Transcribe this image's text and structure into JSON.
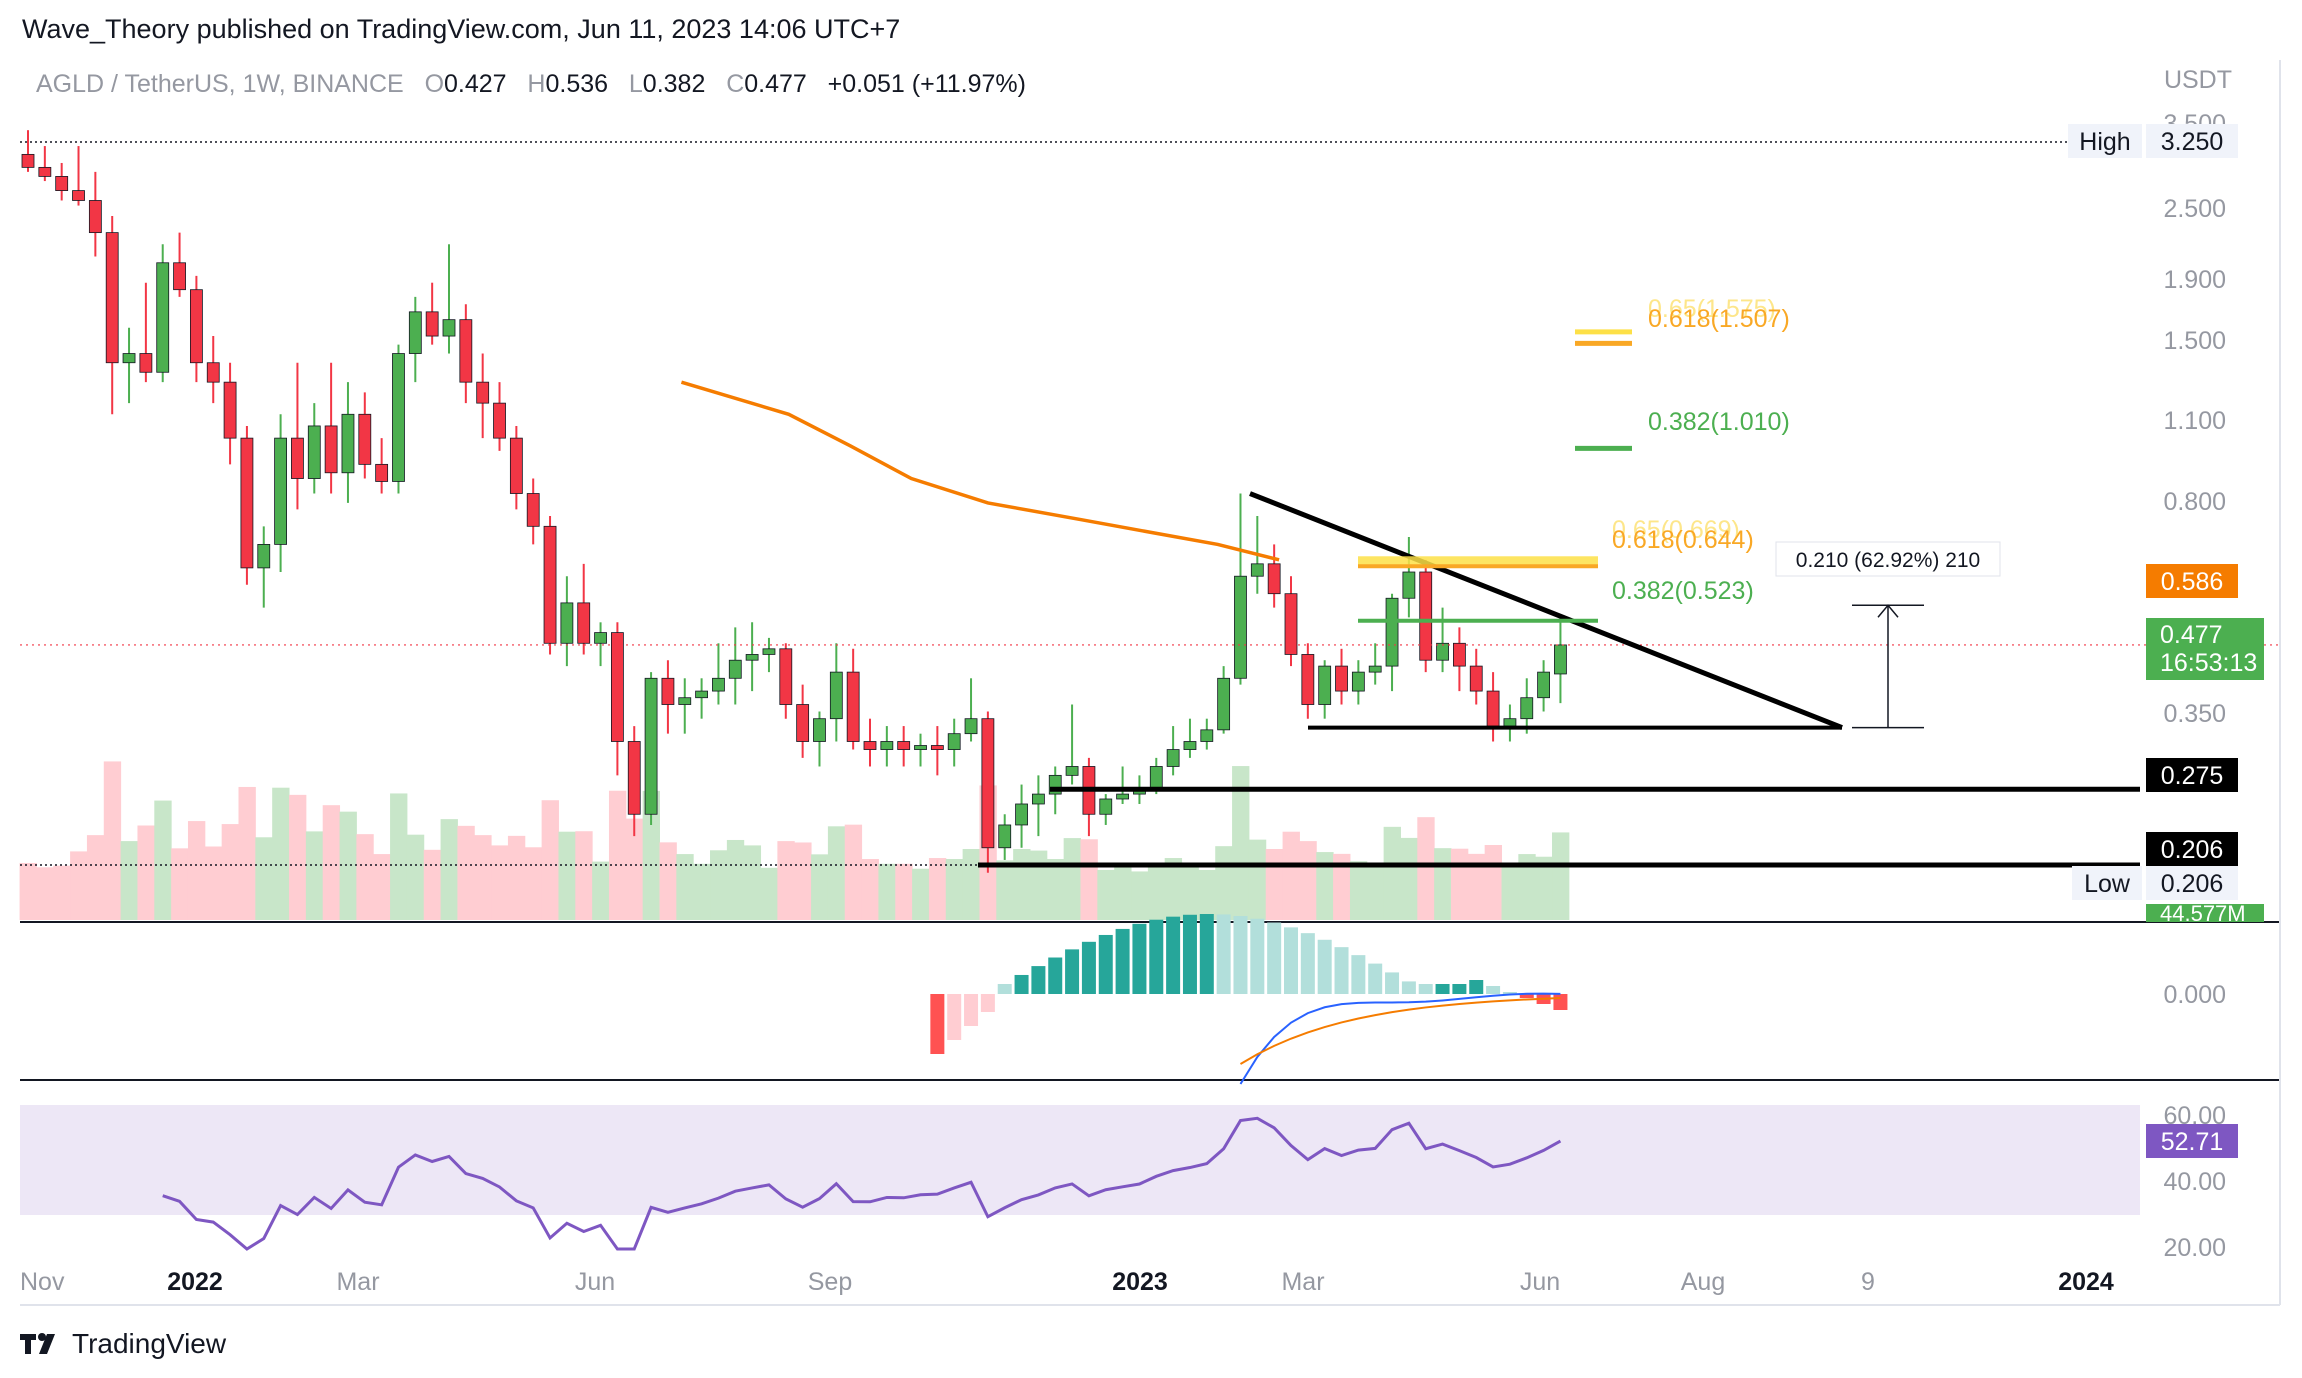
{
  "header": {
    "publisher": "Wave_Theory published on TradingView.com, Jun 11, 2023 14:06 UTC+7"
  },
  "legend": {
    "symbol": "AGLD / TetherUS, 1W, BINANCE",
    "open_label": "O",
    "open": "0.427",
    "high_label": "H",
    "high": "0.536",
    "low_label": "L",
    "low": "0.382",
    "close_label": "C",
    "close": "0.477",
    "change": "+0.051 (+11.97%)"
  },
  "price_axis": {
    "currency": "USDT",
    "ticks": [
      "3.500",
      "2.500",
      "1.900",
      "1.500",
      "1.100",
      "0.800",
      "0.350",
      "20.00"
    ]
  },
  "price_tags": {
    "high_label": "High",
    "high_value": "3.250",
    "low_label": "Low",
    "low_value": "0.206",
    "ema_value": "0.586",
    "last_price": "0.477",
    "countdown": "16:53:13",
    "level_0275": "0.275",
    "level_0206": "0.206",
    "volume": "44.577M"
  },
  "fib_labels": {
    "f065_upper": "0.65(1.575)",
    "f0618_upper": "0.618(1.507)",
    "f0382_upper": "0.382(1.010)",
    "f065_lower": "0.65(0.669)",
    "f0618_lower": "0.618(0.644)",
    "f0382_lower": "0.382(0.523)"
  },
  "measure_label": "0.210 (62.92%) 210",
  "macd": {
    "zero_label": "0.000"
  },
  "rsi": {
    "ticks": [
      "60.00",
      "40.00"
    ],
    "value": "52.71"
  },
  "time_axis": [
    "Nov",
    "2022",
    "Mar",
    "Jun",
    "Sep",
    "2023",
    "Mar",
    "Jun",
    "Aug",
    "9",
    "2024"
  ],
  "footer": {
    "brand": "TradingView"
  },
  "colors": {
    "up": "#4caf50",
    "down": "#f23645",
    "ema": "#f57c00",
    "fib_gold": "#f9a825",
    "fib_green": "#4caf50",
    "macd_strong": "#26a69a",
    "macd_light": "#b2dfdb",
    "macd_neg_strong": "#ff5252",
    "macd_neg_light": "#ffcdd2",
    "rsi": "#7e57c2",
    "rsi_band": "#ede7f6"
  },
  "chart_data": {
    "type": "candlestick",
    "symbol": "AGLD / TetherUS",
    "interval": "1W",
    "exchange": "BINANCE",
    "scale": "log",
    "ohlc": [
      [
        3.1,
        3.4,
        2.9,
        2.95
      ],
      [
        2.95,
        3.2,
        2.8,
        2.85
      ],
      [
        2.85,
        3.0,
        2.6,
        2.7
      ],
      [
        2.7,
        3.2,
        2.55,
        2.6
      ],
      [
        2.6,
        2.9,
        2.1,
        2.3
      ],
      [
        2.3,
        2.45,
        1.15,
        1.4
      ],
      [
        1.4,
        1.6,
        1.2,
        1.45
      ],
      [
        1.45,
        1.9,
        1.3,
        1.35
      ],
      [
        1.35,
        2.2,
        1.3,
        2.05
      ],
      [
        2.05,
        2.3,
        1.8,
        1.85
      ],
      [
        1.85,
        1.95,
        1.3,
        1.4
      ],
      [
        1.4,
        1.55,
        1.2,
        1.3
      ],
      [
        1.3,
        1.4,
        0.95,
        1.05
      ],
      [
        1.05,
        1.1,
        0.6,
        0.64
      ],
      [
        0.64,
        0.75,
        0.55,
        0.7
      ],
      [
        0.7,
        1.15,
        0.63,
        1.05
      ],
      [
        1.05,
        1.4,
        0.8,
        0.9
      ],
      [
        0.9,
        1.2,
        0.85,
        1.1
      ],
      [
        1.1,
        1.4,
        0.85,
        0.92
      ],
      [
        0.92,
        1.3,
        0.82,
        1.15
      ],
      [
        1.15,
        1.25,
        0.9,
        0.95
      ],
      [
        0.95,
        1.05,
        0.85,
        0.89
      ],
      [
        0.89,
        1.5,
        0.85,
        1.45
      ],
      [
        1.45,
        1.8,
        1.3,
        1.7
      ],
      [
        1.7,
        1.9,
        1.5,
        1.55
      ],
      [
        1.55,
        2.2,
        1.45,
        1.65
      ],
      [
        1.65,
        1.75,
        1.2,
        1.3
      ],
      [
        1.3,
        1.45,
        1.05,
        1.2
      ],
      [
        1.2,
        1.3,
        1.0,
        1.05
      ],
      [
        1.05,
        1.1,
        0.8,
        0.85
      ],
      [
        0.85,
        0.9,
        0.7,
        0.75
      ],
      [
        0.75,
        0.78,
        0.46,
        0.48
      ],
      [
        0.48,
        0.62,
        0.44,
        0.56
      ],
      [
        0.56,
        0.65,
        0.46,
        0.48
      ],
      [
        0.48,
        0.52,
        0.44,
        0.5
      ],
      [
        0.5,
        0.52,
        0.29,
        0.33
      ],
      [
        0.33,
        0.35,
        0.23,
        0.25
      ],
      [
        0.25,
        0.43,
        0.24,
        0.42
      ],
      [
        0.42,
        0.45,
        0.34,
        0.38
      ],
      [
        0.38,
        0.42,
        0.34,
        0.39
      ],
      [
        0.39,
        0.42,
        0.36,
        0.4
      ],
      [
        0.4,
        0.48,
        0.38,
        0.42
      ],
      [
        0.42,
        0.51,
        0.38,
        0.45
      ],
      [
        0.45,
        0.52,
        0.4,
        0.46
      ],
      [
        0.46,
        0.49,
        0.43,
        0.47
      ],
      [
        0.47,
        0.48,
        0.36,
        0.38
      ],
      [
        0.38,
        0.41,
        0.31,
        0.33
      ],
      [
        0.33,
        0.37,
        0.3,
        0.36
      ],
      [
        0.36,
        0.48,
        0.33,
        0.43
      ],
      [
        0.43,
        0.47,
        0.32,
        0.33
      ],
      [
        0.33,
        0.36,
        0.3,
        0.32
      ],
      [
        0.32,
        0.35,
        0.3,
        0.33
      ],
      [
        0.33,
        0.35,
        0.3,
        0.32
      ],
      [
        0.32,
        0.34,
        0.3,
        0.325
      ],
      [
        0.325,
        0.35,
        0.29,
        0.32
      ],
      [
        0.32,
        0.36,
        0.3,
        0.34
      ],
      [
        0.34,
        0.42,
        0.33,
        0.36
      ],
      [
        0.36,
        0.37,
        0.2,
        0.22
      ],
      [
        0.22,
        0.25,
        0.21,
        0.24
      ],
      [
        0.24,
        0.28,
        0.22,
        0.26
      ],
      [
        0.26,
        0.29,
        0.23,
        0.27
      ],
      [
        0.27,
        0.3,
        0.25,
        0.29
      ],
      [
        0.29,
        0.38,
        0.28,
        0.3
      ],
      [
        0.3,
        0.31,
        0.23,
        0.25
      ],
      [
        0.25,
        0.27,
        0.24,
        0.265
      ],
      [
        0.265,
        0.3,
        0.26,
        0.27
      ],
      [
        0.27,
        0.29,
        0.26,
        0.275
      ],
      [
        0.275,
        0.31,
        0.27,
        0.3
      ],
      [
        0.3,
        0.35,
        0.29,
        0.32
      ],
      [
        0.32,
        0.36,
        0.31,
        0.33
      ],
      [
        0.33,
        0.36,
        0.32,
        0.345
      ],
      [
        0.345,
        0.44,
        0.34,
        0.42
      ],
      [
        0.42,
        0.85,
        0.41,
        0.62
      ],
      [
        0.62,
        0.78,
        0.58,
        0.65
      ],
      [
        0.65,
        0.7,
        0.55,
        0.58
      ],
      [
        0.58,
        0.62,
        0.44,
        0.46
      ],
      [
        0.46,
        0.48,
        0.36,
        0.38
      ],
      [
        0.38,
        0.45,
        0.36,
        0.44
      ],
      [
        0.44,
        0.47,
        0.38,
        0.4
      ],
      [
        0.4,
        0.45,
        0.38,
        0.43
      ],
      [
        0.43,
        0.48,
        0.41,
        0.44
      ],
      [
        0.44,
        0.58,
        0.4,
        0.57
      ],
      [
        0.57,
        0.72,
        0.53,
        0.63
      ],
      [
        0.63,
        0.66,
        0.43,
        0.45
      ],
      [
        0.45,
        0.55,
        0.43,
        0.48
      ],
      [
        0.48,
        0.51,
        0.4,
        0.44
      ],
      [
        0.44,
        0.47,
        0.38,
        0.4
      ],
      [
        0.4,
        0.43,
        0.33,
        0.35
      ],
      [
        0.35,
        0.38,
        0.33,
        0.36
      ],
      [
        0.36,
        0.42,
        0.34,
        0.39
      ],
      [
        0.39,
        0.45,
        0.37,
        0.43
      ],
      [
        0.427,
        0.536,
        0.382,
        0.477
      ]
    ],
    "ema_values": [
      [
        0.26,
        1.3
      ],
      [
        0.33,
        1.15
      ],
      [
        0.37,
        1.02
      ],
      [
        0.41,
        0.9
      ],
      [
        0.46,
        0.82
      ],
      [
        0.52,
        0.77
      ],
      [
        0.57,
        0.73
      ],
      [
        0.61,
        0.7
      ],
      [
        0.65,
        0.66
      ]
    ],
    "triangle": {
      "upper_trendline": [
        [
          0.845,
          0.58
        ],
        [
          1.0,
          0.37
        ]
      ],
      "lower_trendline": [
        [
          0.58,
          0.37
        ],
        [
          1.0,
          0.37
        ]
      ]
    },
    "horizontal_levels": [
      0.275,
      0.206
    ],
    "all_time_high": 3.25,
    "all_time_low": 0.206,
    "volume_last": "44.577M",
    "macd_zero": 0.0,
    "rsi_last": 52.71
  }
}
